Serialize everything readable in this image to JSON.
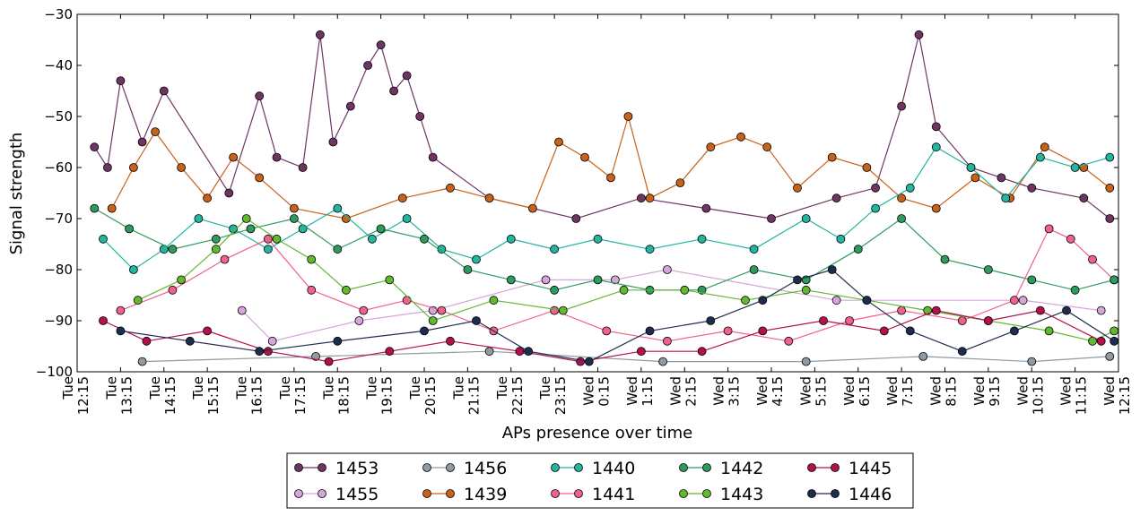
{
  "chart_data": {
    "type": "line",
    "title": "",
    "xlabel": "APs presence over time",
    "ylabel": "Signal strength",
    "ylim": [
      -100,
      -30
    ],
    "y_ticks": [
      -100,
      -90,
      -80,
      -70,
      -60,
      -50,
      -40,
      -30
    ],
    "y_tick_labels": [
      "−100",
      "−90",
      "−80",
      "−70",
      "−60",
      "−50",
      "−40",
      "−30"
    ],
    "x_start": "Tue 12:15",
    "x_end": "Wed 12:15",
    "x_ticks": [
      {
        "day": "Tue",
        "time": "12:15"
      },
      {
        "day": "Tue",
        "time": "13:15"
      },
      {
        "day": "Tue",
        "time": "14:15"
      },
      {
        "day": "Tue",
        "time": "15:15"
      },
      {
        "day": "Tue",
        "time": "16:15"
      },
      {
        "day": "Tue",
        "time": "17:15"
      },
      {
        "day": "Tue",
        "time": "18:15"
      },
      {
        "day": "Tue",
        "time": "19:15"
      },
      {
        "day": "Tue",
        "time": "20:15"
      },
      {
        "day": "Tue",
        "time": "21:15"
      },
      {
        "day": "Tue",
        "time": "22:15"
      },
      {
        "day": "Tue",
        "time": "23:15"
      },
      {
        "day": "Wed",
        "time": "0:15"
      },
      {
        "day": "Wed",
        "time": "1:15"
      },
      {
        "day": "Wed",
        "time": "2:15"
      },
      {
        "day": "Wed",
        "time": "3:15"
      },
      {
        "day": "Wed",
        "time": "4:15"
      },
      {
        "day": "Wed",
        "time": "5:15"
      },
      {
        "day": "Wed",
        "time": "6:15"
      },
      {
        "day": "Wed",
        "time": "7:15"
      },
      {
        "day": "Wed",
        "time": "8:15"
      },
      {
        "day": "Wed",
        "time": "9:15"
      },
      {
        "day": "Wed",
        "time": "10:15"
      },
      {
        "day": "Wed",
        "time": "11:15"
      },
      {
        "day": "Wed",
        "time": "12:15"
      }
    ],
    "grid": false,
    "legend_position": "bottom-center",
    "series": [
      {
        "name": "1453",
        "color": "#6e3563",
        "points": [
          [
            0.4,
            -56
          ],
          [
            0.7,
            -60
          ],
          [
            1.0,
            -43
          ],
          [
            1.5,
            -55
          ],
          [
            2.0,
            -45
          ],
          [
            3.5,
            -65
          ],
          [
            4.2,
            -46
          ],
          [
            4.6,
            -58
          ],
          [
            5.2,
            -60
          ],
          [
            5.6,
            -34
          ],
          [
            5.9,
            -55
          ],
          [
            6.3,
            -48
          ],
          [
            6.7,
            -40
          ],
          [
            7.0,
            -36
          ],
          [
            7.3,
            -45
          ],
          [
            7.6,
            -42
          ],
          [
            7.9,
            -50
          ],
          [
            8.2,
            -58
          ],
          [
            9.5,
            -66
          ],
          [
            11.5,
            -70
          ],
          [
            13.0,
            -66
          ],
          [
            14.5,
            -68
          ],
          [
            16.0,
            -70
          ],
          [
            17.5,
            -66
          ],
          [
            18.4,
            -64
          ],
          [
            19.0,
            -48
          ],
          [
            19.4,
            -34
          ],
          [
            19.8,
            -52
          ],
          [
            20.6,
            -60
          ],
          [
            21.3,
            -62
          ],
          [
            22.0,
            -64
          ],
          [
            23.2,
            -66
          ],
          [
            23.8,
            -70
          ]
        ]
      },
      {
        "name": "1455",
        "color": "#d6a6da",
        "points": [
          [
            3.8,
            -88
          ],
          [
            4.5,
            -94
          ],
          [
            6.5,
            -90
          ],
          [
            8.2,
            -88
          ],
          [
            10.8,
            -82
          ],
          [
            12.4,
            -82
          ],
          [
            13.6,
            -80
          ],
          [
            17.5,
            -86
          ],
          [
            21.8,
            -86
          ],
          [
            23.6,
            -88
          ]
        ]
      },
      {
        "name": "1456",
        "color": "#8f9aa3",
        "points": [
          [
            1.5,
            -98
          ],
          [
            5.5,
            -97
          ],
          [
            9.5,
            -96
          ],
          [
            13.5,
            -98
          ],
          [
            16.8,
            -98
          ],
          [
            19.5,
            -97
          ],
          [
            22.0,
            -98
          ],
          [
            23.8,
            -97
          ]
        ]
      },
      {
        "name": "1439",
        "color": "#c8611a",
        "points": [
          [
            0.8,
            -68
          ],
          [
            1.3,
            -60
          ],
          [
            1.8,
            -53
          ],
          [
            2.4,
            -60
          ],
          [
            3.0,
            -66
          ],
          [
            3.6,
            -58
          ],
          [
            4.2,
            -62
          ],
          [
            5.0,
            -68
          ],
          [
            6.2,
            -70
          ],
          [
            7.5,
            -66
          ],
          [
            8.6,
            -64
          ],
          [
            9.5,
            -66
          ],
          [
            10.5,
            -68
          ],
          [
            11.1,
            -55
          ],
          [
            11.7,
            -58
          ],
          [
            12.3,
            -62
          ],
          [
            12.7,
            -50
          ],
          [
            13.2,
            -66
          ],
          [
            13.9,
            -63
          ],
          [
            14.6,
            -56
          ],
          [
            15.3,
            -54
          ],
          [
            15.9,
            -56
          ],
          [
            16.6,
            -64
          ],
          [
            17.4,
            -58
          ],
          [
            18.2,
            -60
          ],
          [
            19.0,
            -66
          ],
          [
            19.8,
            -68
          ],
          [
            20.7,
            -62
          ],
          [
            21.5,
            -66
          ],
          [
            22.3,
            -56
          ],
          [
            23.2,
            -60
          ],
          [
            23.8,
            -64
          ]
        ]
      },
      {
        "name": "1440",
        "color": "#22b5a0",
        "points": [
          [
            0.6,
            -74
          ],
          [
            1.3,
            -80
          ],
          [
            2.0,
            -76
          ],
          [
            2.8,
            -70
          ],
          [
            3.6,
            -72
          ],
          [
            4.4,
            -76
          ],
          [
            5.2,
            -72
          ],
          [
            6.0,
            -68
          ],
          [
            6.8,
            -74
          ],
          [
            7.6,
            -70
          ],
          [
            8.4,
            -76
          ],
          [
            9.2,
            -78
          ],
          [
            10.0,
            -74
          ],
          [
            11.0,
            -76
          ],
          [
            12.0,
            -74
          ],
          [
            13.2,
            -76
          ],
          [
            14.4,
            -74
          ],
          [
            15.6,
            -76
          ],
          [
            16.8,
            -70
          ],
          [
            17.6,
            -74
          ],
          [
            18.4,
            -68
          ],
          [
            19.2,
            -64
          ],
          [
            19.8,
            -56
          ],
          [
            20.6,
            -60
          ],
          [
            21.4,
            -66
          ],
          [
            22.2,
            -58
          ],
          [
            23.0,
            -60
          ],
          [
            23.8,
            -58
          ]
        ]
      },
      {
        "name": "1441",
        "color": "#f0628e",
        "points": [
          [
            1.0,
            -88
          ],
          [
            2.2,
            -84
          ],
          [
            3.4,
            -78
          ],
          [
            4.4,
            -74
          ],
          [
            5.4,
            -84
          ],
          [
            6.6,
            -88
          ],
          [
            7.6,
            -86
          ],
          [
            8.4,
            -88
          ],
          [
            9.6,
            -92
          ],
          [
            11.0,
            -88
          ],
          [
            12.2,
            -92
          ],
          [
            13.6,
            -94
          ],
          [
            15.0,
            -92
          ],
          [
            16.4,
            -94
          ],
          [
            17.8,
            -90
          ],
          [
            19.0,
            -88
          ],
          [
            20.4,
            -90
          ],
          [
            21.6,
            -86
          ],
          [
            22.4,
            -72
          ],
          [
            22.9,
            -74
          ],
          [
            23.4,
            -78
          ],
          [
            23.9,
            -82
          ]
        ]
      },
      {
        "name": "1442",
        "color": "#2e9b5e",
        "points": [
          [
            0.4,
            -68
          ],
          [
            1.2,
            -72
          ],
          [
            2.2,
            -76
          ],
          [
            3.2,
            -74
          ],
          [
            4.0,
            -72
          ],
          [
            5.0,
            -70
          ],
          [
            6.0,
            -76
          ],
          [
            7.0,
            -72
          ],
          [
            8.0,
            -74
          ],
          [
            9.0,
            -80
          ],
          [
            10.0,
            -82
          ],
          [
            11.0,
            -84
          ],
          [
            12.0,
            -82
          ],
          [
            13.2,
            -84
          ],
          [
            14.4,
            -84
          ],
          [
            15.6,
            -80
          ],
          [
            16.8,
            -82
          ],
          [
            18.0,
            -76
          ],
          [
            19.0,
            -70
          ],
          [
            20.0,
            -78
          ],
          [
            21.0,
            -80
          ],
          [
            22.0,
            -82
          ],
          [
            23.0,
            -84
          ],
          [
            23.9,
            -82
          ]
        ]
      },
      {
        "name": "1443",
        "color": "#62b82e",
        "points": [
          [
            1.4,
            -86
          ],
          [
            2.4,
            -82
          ],
          [
            3.2,
            -76
          ],
          [
            3.9,
            -70
          ],
          [
            4.6,
            -74
          ],
          [
            5.4,
            -78
          ],
          [
            6.2,
            -84
          ],
          [
            7.2,
            -82
          ],
          [
            8.2,
            -90
          ],
          [
            9.6,
            -86
          ],
          [
            11.2,
            -88
          ],
          [
            12.6,
            -84
          ],
          [
            14.0,
            -84
          ],
          [
            15.4,
            -86
          ],
          [
            16.8,
            -84
          ],
          [
            18.2,
            -86
          ],
          [
            19.6,
            -88
          ],
          [
            21.0,
            -90
          ],
          [
            22.4,
            -92
          ],
          [
            23.4,
            -94
          ],
          [
            23.9,
            -92
          ]
        ]
      },
      {
        "name": "1445",
        "color": "#b5104e",
        "points": [
          [
            0.6,
            -90
          ],
          [
            1.6,
            -94
          ],
          [
            3.0,
            -92
          ],
          [
            4.4,
            -96
          ],
          [
            5.8,
            -98
          ],
          [
            7.2,
            -96
          ],
          [
            8.6,
            -94
          ],
          [
            10.2,
            -96
          ],
          [
            11.6,
            -98
          ],
          [
            13.0,
            -96
          ],
          [
            14.4,
            -96
          ],
          [
            15.8,
            -92
          ],
          [
            17.2,
            -90
          ],
          [
            18.6,
            -92
          ],
          [
            19.8,
            -88
          ],
          [
            21.0,
            -90
          ],
          [
            22.2,
            -88
          ],
          [
            23.6,
            -94
          ]
        ]
      },
      {
        "name": "1446",
        "color": "#1e2d4f",
        "points": [
          [
            1.0,
            -92
          ],
          [
            2.6,
            -94
          ],
          [
            4.2,
            -96
          ],
          [
            6.0,
            -94
          ],
          [
            8.0,
            -92
          ],
          [
            9.2,
            -90
          ],
          [
            10.4,
            -96
          ],
          [
            11.8,
            -98
          ],
          [
            13.2,
            -92
          ],
          [
            14.6,
            -90
          ],
          [
            15.8,
            -86
          ],
          [
            16.6,
            -82
          ],
          [
            17.4,
            -80
          ],
          [
            18.2,
            -86
          ],
          [
            19.2,
            -92
          ],
          [
            20.4,
            -96
          ],
          [
            21.6,
            -92
          ],
          [
            22.8,
            -88
          ],
          [
            23.9,
            -94
          ]
        ]
      }
    ]
  },
  "legend": {
    "columns": 5,
    "order": [
      "1453",
      "1455",
      "1456",
      "1439",
      "1440",
      "1441",
      "1442",
      "1443",
      "1445",
      "1446"
    ]
  }
}
